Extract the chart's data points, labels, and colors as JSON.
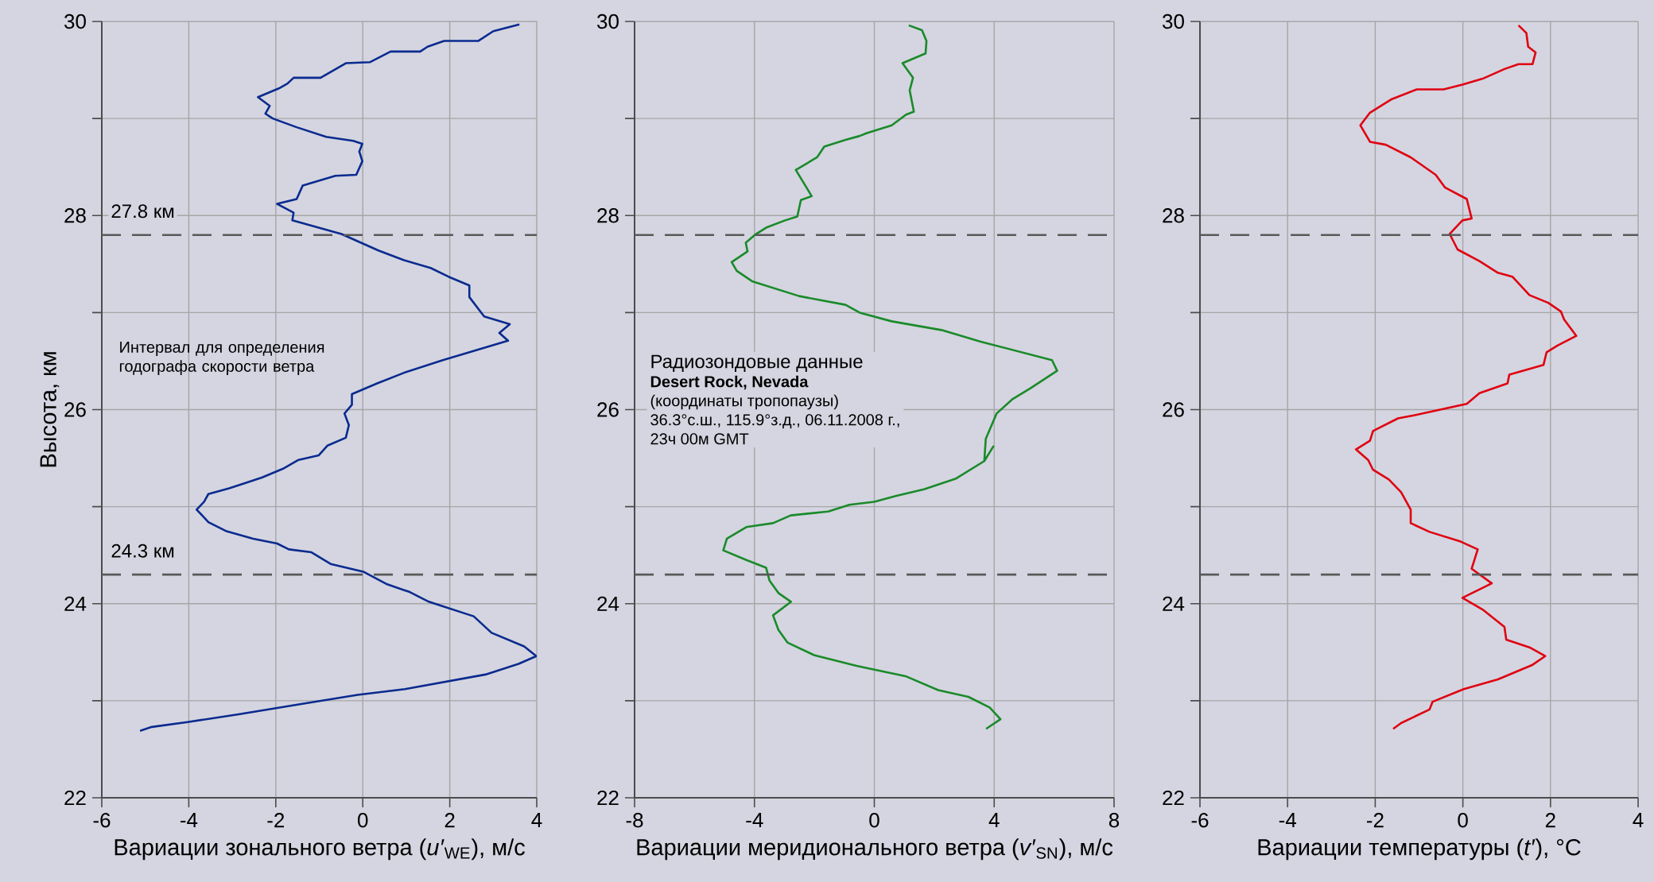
{
  "chart_data": [
    {
      "type": "line",
      "xlabel": "Вариации зонального ветра (*u′*$_{WE}$), м/с",
      "ylabel": "Высота, км",
      "xlim": [
        -6,
        4
      ],
      "ylim": [
        22,
        30
      ],
      "xticks": [
        -6,
        -4,
        -2,
        0,
        2,
        4
      ],
      "yticks": [
        22,
        {
          "value": 23,
          "label": null
        },
        24,
        {
          "value": 25,
          "label": null
        },
        26,
        {
          "value": 27,
          "label": null
        },
        28,
        {
          "value": 29,
          "label": null
        },
        30
      ],
      "grid": true,
      "ref_lines": [
        {
          "axis": "y",
          "value": 27.8,
          "label": "27.8 км"
        },
        {
          "axis": "y",
          "value": 24.3,
          "label": "24.3 км"
        }
      ],
      "annotations": [
        "Интервал для определения годографа скорости ветра"
      ],
      "series": [
        {
          "color": "#0a2a8f",
          "x": [
            3.6,
            3.0,
            2.66,
            1.87,
            1.49,
            1.32,
            0.64,
            0.16,
            -0.39,
            -0.97,
            -1.59,
            -1.73,
            -1.93,
            -2.41,
            -2.14,
            -2.24,
            -2.07,
            -1.52,
            -0.84,
            -0.22,
            -0.01,
            -0.08,
            -0.01,
            -0.15,
            -0.63,
            -1.38,
            -1.52,
            -1.97,
            -1.59,
            -1.62,
            -0.49,
            0.36,
            0.95,
            1.56,
            1.97,
            2.45,
            2.45,
            2.79,
            3.38,
            3.14,
            3.34,
            1.84,
            0.95,
            0.33,
            -0.25,
            -0.25,
            -0.42,
            -0.32,
            -0.39,
            -0.81,
            -1.01,
            -1.49,
            -1.84,
            -2.32,
            -2.79,
            -3.07,
            -3.55,
            -3.65,
            -3.82,
            -3.65,
            -3.55,
            -3.15,
            -2.52,
            -1.97,
            -1.7,
            -1.18,
            -0.74,
            0.01,
            0.56,
            1.08,
            1.52,
            2.55,
            2.96,
            3.71,
            3.99,
            3.58,
            2.82,
            0.97,
            -0.12,
            -1.36,
            -2.86,
            -4.03,
            -4.85,
            -5.12
          ],
          "values": [
            29.97,
            29.9,
            29.8,
            29.8,
            29.74,
            29.69,
            29.69,
            29.58,
            29.57,
            29.42,
            29.42,
            29.36,
            29.31,
            29.22,
            29.13,
            29.05,
            29.0,
            28.91,
            28.81,
            28.77,
            28.74,
            28.66,
            28.56,
            28.42,
            28.41,
            28.31,
            28.17,
            28.12,
            28.03,
            27.95,
            27.81,
            27.64,
            27.54,
            27.46,
            27.37,
            27.28,
            27.16,
            26.96,
            26.88,
            26.79,
            26.71,
            26.51,
            26.38,
            26.27,
            26.16,
            26.05,
            25.96,
            25.84,
            25.71,
            25.63,
            25.53,
            25.48,
            25.39,
            25.3,
            25.23,
            25.19,
            25.13,
            25.05,
            24.97,
            24.89,
            24.84,
            24.75,
            24.67,
            24.62,
            24.56,
            24.53,
            24.41,
            24.33,
            24.2,
            24.12,
            24.02,
            23.87,
            23.7,
            23.56,
            23.46,
            23.38,
            23.27,
            23.12,
            23.06,
            22.97,
            22.86,
            22.78,
            22.73,
            22.69
          ]
        }
      ]
    },
    {
      "type": "line",
      "xlabel": "Вариации меридионального ветра (*v′*$_{SN}$), м/с",
      "xlim": [
        -8,
        8
      ],
      "ylim": [
        22,
        30
      ],
      "xticks": [
        -8,
        -4,
        0,
        4,
        8
      ],
      "yticks": [
        22,
        {
          "value": 23,
          "label": null
        },
        24,
        {
          "value": 25,
          "label": null
        },
        26,
        {
          "value": 27,
          "label": null
        },
        28,
        {
          "value": 29,
          "label": null
        },
        30
      ],
      "grid": true,
      "ref_lines": [
        {
          "axis": "y",
          "value": 27.8
        },
        {
          "axis": "y",
          "value": 24.3
        }
      ],
      "annotations": [
        "Радиозондовые данные",
        "**Desert Rock, Nevada**",
        "(координаты тропопаузы)",
        "36.3°с.ш., 115.9°з.д., 06.11.2008 г.,",
        "23ч 00м GMT"
      ],
      "series": [
        {
          "color": "#1a8a2a",
          "x": [
            1.15,
            1.59,
            1.74,
            1.71,
            0.94,
            1.29,
            1.18,
            1.32,
            1.06,
            0.58,
            -0.25,
            -0.49,
            -0.96,
            -1.67,
            -1.91,
            -2.62,
            -2.09,
            -2.45,
            -2.57,
            -2.98,
            -3.58,
            -3.99,
            -4.29,
            -4.23,
            -4.76,
            -4.59,
            -4.06,
            -2.51,
            -0.96,
            -0.49,
            0.58,
            2.24,
            3.55,
            5.93,
            6.1,
            5.21,
            4.62,
            4.08,
            3.72,
            3.67,
            3.97,
            3.67,
            2.73,
            1.66,
            0.71,
            0.0,
            -0.83,
            -1.54,
            -2.79,
            -3.38,
            -4.27,
            -4.92,
            -5.04,
            -4.27,
            -3.61,
            -3.5,
            -3.2,
            -2.78,
            -3.38,
            -3.2,
            -2.9,
            -2.01,
            -0.59,
            1.07,
            2.13,
            3.14,
            3.85,
            4.21,
            3.73
          ],
          "values": [
            29.96,
            29.91,
            29.8,
            29.67,
            29.57,
            29.42,
            29.29,
            29.07,
            29.04,
            28.93,
            28.85,
            28.82,
            28.78,
            28.71,
            28.6,
            28.47,
            28.2,
            28.16,
            27.99,
            27.95,
            27.88,
            27.8,
            27.72,
            27.63,
            27.52,
            27.43,
            27.32,
            27.17,
            27.08,
            27.0,
            26.91,
            26.82,
            26.7,
            26.51,
            26.4,
            26.22,
            26.11,
            25.96,
            25.7,
            25.47,
            25.62,
            25.47,
            25.29,
            25.18,
            25.11,
            25.05,
            25.02,
            24.95,
            24.91,
            24.83,
            24.79,
            24.67,
            24.55,
            24.45,
            24.37,
            24.24,
            24.11,
            24.02,
            23.88,
            23.73,
            23.6,
            23.47,
            23.36,
            23.25,
            23.11,
            23.04,
            22.93,
            22.81,
            22.71
          ]
        }
      ]
    },
    {
      "type": "line",
      "xlabel": "Вариации температуры (*t′*), °C",
      "xlim": [
        -6,
        4
      ],
      "ylim": [
        22,
        30
      ],
      "xticks": [
        -6,
        -4,
        -2,
        0,
        2,
        4
      ],
      "yticks": [
        22,
        {
          "value": 23,
          "label": null
        },
        24,
        {
          "value": 25,
          "label": null
        },
        26,
        {
          "value": 27,
          "label": null
        },
        28,
        {
          "value": 29,
          "label": null
        },
        30
      ],
      "grid": true,
      "ref_lines": [
        {
          "axis": "y",
          "value": 27.8
        },
        {
          "axis": "y",
          "value": 24.3
        }
      ],
      "series": [
        {
          "color": "#e00010",
          "x": [
            1.27,
            1.45,
            1.49,
            1.66,
            1.59,
            1.27,
            0.95,
            0.45,
            -0.01,
            -0.44,
            -1.05,
            -1.62,
            -1.94,
            -2.12,
            -2.34,
            -2.12,
            -1.76,
            -1.19,
            -0.62,
            -0.41,
            0.09,
            0.2,
            -0.01,
            -0.3,
            -0.12,
            0.38,
            0.8,
            1.13,
            1.52,
            1.95,
            2.24,
            2.31,
            2.59,
            2.16,
            1.91,
            1.84,
            1.06,
            1.02,
            0.38,
            0.09,
            -1.12,
            -1.48,
            -2.05,
            -2.12,
            -2.44,
            -2.16,
            -2.05,
            -1.69,
            -1.41,
            -1.19,
            -1.19,
            -0.76,
            -0.05,
            0.34,
            0.2,
            0.66,
            -0.01,
            0.45,
            0.95,
            0.99,
            1.52,
            1.88,
            1.59,
            0.8,
            0.02,
            -0.69,
            -0.76,
            -1.41,
            -1.59
          ],
          "values": [
            29.96,
            29.88,
            29.74,
            29.68,
            29.56,
            29.56,
            29.51,
            29.41,
            29.35,
            29.3,
            29.3,
            29.2,
            29.11,
            29.06,
            28.93,
            28.76,
            28.73,
            28.6,
            28.42,
            28.29,
            28.17,
            27.97,
            27.95,
            27.81,
            27.65,
            27.53,
            27.41,
            27.37,
            27.18,
            27.1,
            27.01,
            26.93,
            26.76,
            26.66,
            26.59,
            26.46,
            26.36,
            26.27,
            26.17,
            26.06,
            25.94,
            25.91,
            25.78,
            25.68,
            25.59,
            25.48,
            25.38,
            25.28,
            25.15,
            24.97,
            24.83,
            24.74,
            24.64,
            24.56,
            24.36,
            24.21,
            24.06,
            23.94,
            23.76,
            23.63,
            23.55,
            23.46,
            23.37,
            23.22,
            23.12,
            22.99,
            22.91,
            22.77,
            22.71
          ]
        }
      ]
    }
  ]
}
